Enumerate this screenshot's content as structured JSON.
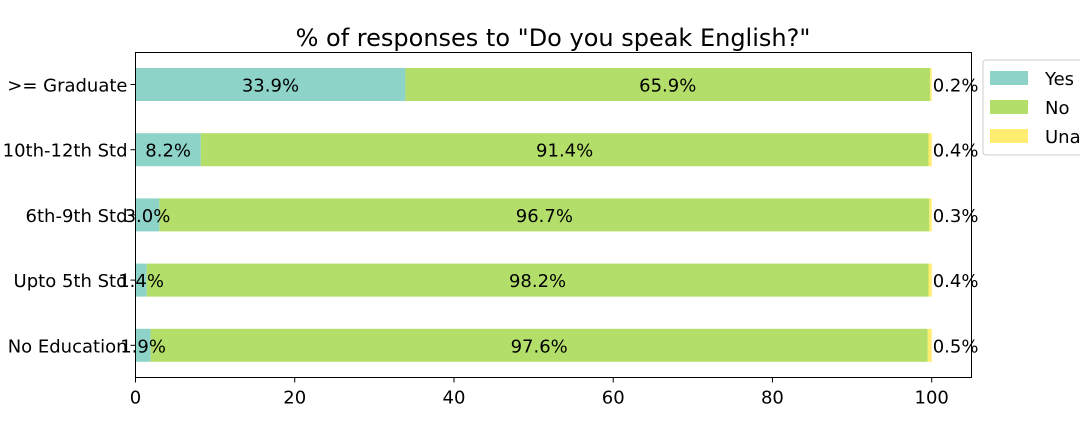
{
  "chart_data": {
    "type": "bar",
    "orientation": "horizontal",
    "stacked": true,
    "title": "% of responses to \"Do you speak English?\"",
    "xlabel": "",
    "ylabel": "",
    "xlim": [
      0,
      105
    ],
    "xticks": [
      0,
      20,
      40,
      60,
      80,
      100
    ],
    "categories": [
      ">= Graduate",
      "10th-12th Std",
      "6th-9th Std",
      "Upto 5th Std",
      "No Education"
    ],
    "series": [
      {
        "name": "Yes",
        "color": "#8dd3c7",
        "values": [
          33.9,
          8.2,
          3.0,
          1.4,
          1.9
        ],
        "labels": [
          "33.9%",
          "8.2%",
          "3.0%",
          "1.4%",
          "1.9%"
        ]
      },
      {
        "name": "No",
        "color": "#b3de69",
        "values": [
          65.9,
          91.4,
          96.7,
          98.2,
          97.6
        ],
        "labels": [
          "65.9%",
          "91.4%",
          "96.7%",
          "98.2%",
          "97.6%"
        ]
      },
      {
        "name": "Unanswered",
        "color": "#ffed6f",
        "values": [
          0.2,
          0.4,
          0.3,
          0.4,
          0.5
        ],
        "labels": [
          "0.2%",
          "0.4%",
          "0.3%",
          "0.4%",
          "0.5%"
        ]
      }
    ],
    "legend": {
      "placement": "outside-top-right",
      "visible_labels": [
        "Yes",
        "No",
        "Una"
      ]
    },
    "grid": false
  }
}
